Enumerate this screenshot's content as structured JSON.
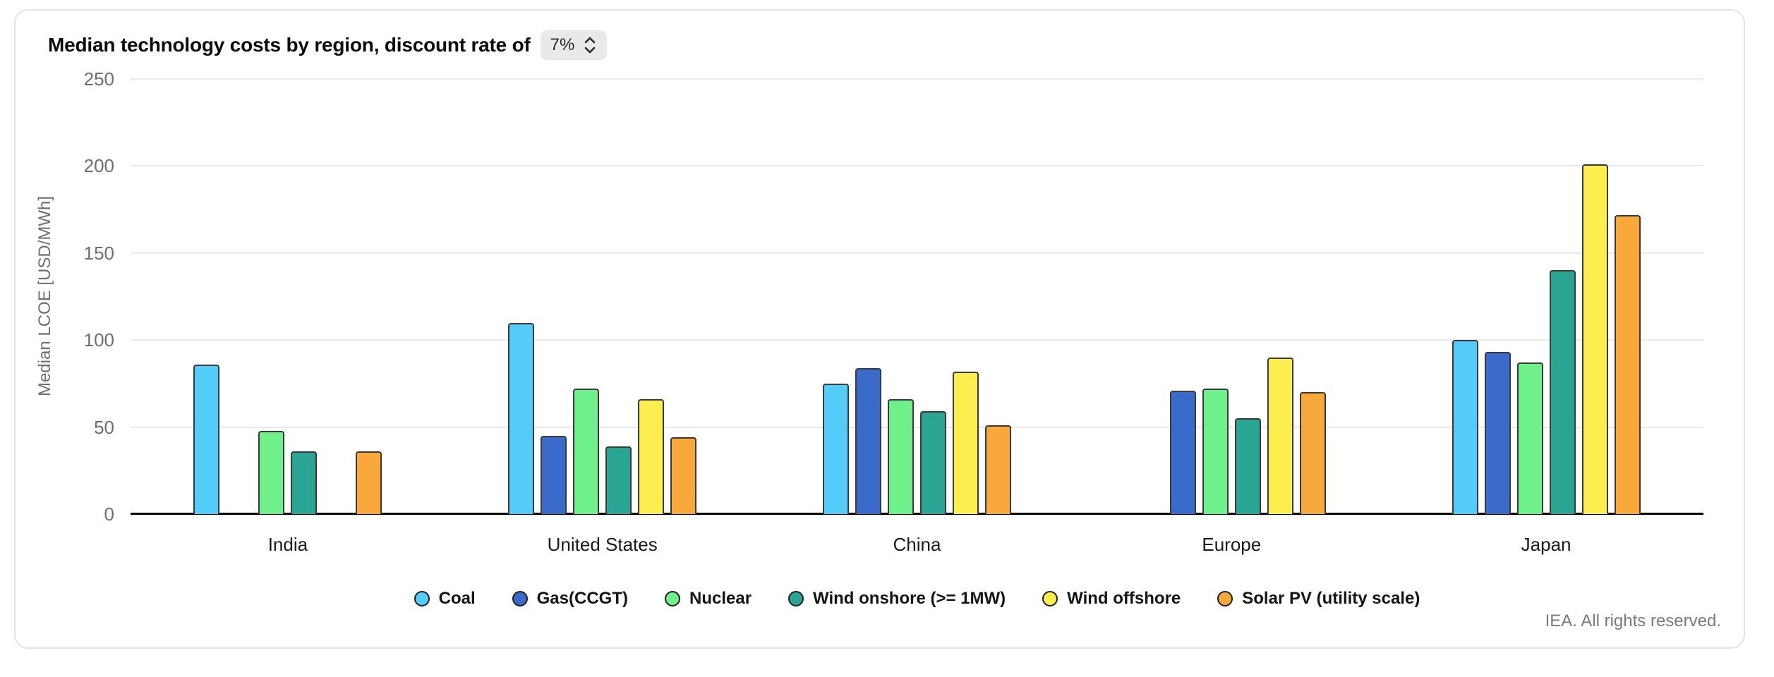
{
  "header": {
    "title": "Median technology costs by region, discount rate of",
    "discount_rate_value": "7%"
  },
  "chart_data": {
    "type": "bar",
    "title": "Median technology costs by region, discount rate of 7%",
    "xlabel": "",
    "ylabel": "Median LCOE [USD/MWh]",
    "ylim": [
      0,
      250
    ],
    "yticks": [
      0,
      50,
      100,
      150,
      200,
      250
    ],
    "grid": true,
    "legend_position": "bottom",
    "categories": [
      "India",
      "United States",
      "China",
      "Europe",
      "Japan"
    ],
    "series": [
      {
        "name": "Coal",
        "color": "#54CCF9",
        "values": [
          86,
          110,
          75,
          null,
          100
        ]
      },
      {
        "name": "Gas(CCGT)",
        "color": "#3A6BCB",
        "values": [
          null,
          45,
          84,
          71,
          93
        ]
      },
      {
        "name": "Nuclear",
        "color": "#6FF08B",
        "values": [
          48,
          72,
          66,
          72,
          87
        ]
      },
      {
        "name": "Wind onshore (>= 1MW)",
        "color": "#2BA593",
        "values": [
          36,
          39,
          59,
          55,
          140
        ]
      },
      {
        "name": "Wind offshore",
        "color": "#FCEE4F",
        "values": [
          null,
          66,
          82,
          90,
          201
        ]
      },
      {
        "name": "Solar PV (utility scale)",
        "color": "#F9A83C",
        "values": [
          36,
          44,
          51,
          70,
          172
        ]
      }
    ]
  },
  "footer": {
    "copyright": "IEA. All rights reserved."
  }
}
